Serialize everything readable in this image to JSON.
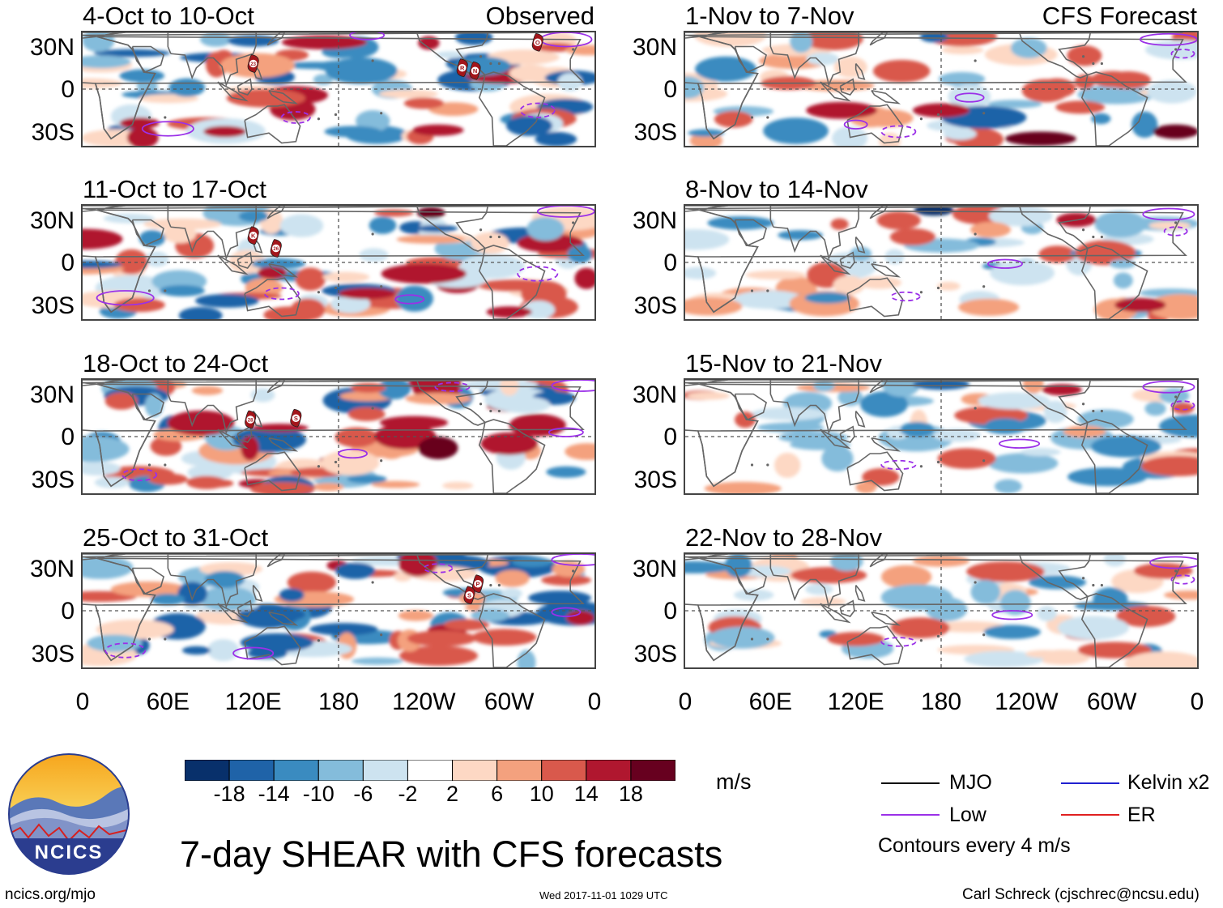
{
  "chart_data": {
    "type": "heatmap",
    "title": "7-day SHEAR with CFS forecasts",
    "unit": "m/s",
    "observed_label": "Observed",
    "forecast_label": "CFS Forecast",
    "x_tick_labels": [
      "0",
      "60E",
      "120E",
      "180",
      "120W",
      "60W",
      "0"
    ],
    "y_tick_labels": [
      "30N",
      "0",
      "30S"
    ],
    "xlim_deg_east": [
      0,
      360
    ],
    "ylim_deg_lat": [
      -40,
      40
    ],
    "colorbar": {
      "ticks": [
        "-18",
        "-14",
        "-10",
        "-6",
        "-2",
        "2",
        "6",
        "10",
        "14",
        "18"
      ],
      "colors": [
        "#08306b",
        "#1f63a8",
        "#3a8bc0",
        "#84bcdb",
        "#cde3f0",
        "#ffffff",
        "#fdd8c4",
        "#f4a17e",
        "#d9594c",
        "#b0172f",
        "#67001f"
      ]
    },
    "panels": [
      {
        "title": "4-Oct to 10-Oct",
        "column": "observed",
        "storms": [
          {
            "label": "23",
            "lon": 120,
            "lat": 18
          },
          {
            "label": "R",
            "lon": 267,
            "lat": 15
          },
          {
            "label": "N",
            "lon": 276,
            "lat": 13
          },
          {
            "label": "O",
            "lon": 320,
            "lat": 33
          }
        ]
      },
      {
        "title": "11-Oct to 17-Oct",
        "column": "observed",
        "storms": [
          {
            "label": "K",
            "lon": 120,
            "lat": 19
          },
          {
            "label": "26",
            "lon": 136,
            "lat": 10
          }
        ]
      },
      {
        "title": "18-Oct to 24-Oct",
        "column": "observed",
        "storms": [
          {
            "label": "28",
            "lon": 118,
            "lat": 12
          },
          {
            "label": "S",
            "lon": 150,
            "lat": 13
          }
        ]
      },
      {
        "title": "25-Oct to 31-Oct",
        "column": "observed",
        "storms": [
          {
            "label": "P",
            "lon": 278,
            "lat": 19
          },
          {
            "label": "S",
            "lon": 272,
            "lat": 11
          }
        ]
      },
      {
        "title": "1-Nov to 7-Nov",
        "column": "forecast",
        "storms": []
      },
      {
        "title": "8-Nov to 14-Nov",
        "column": "forecast",
        "storms": []
      },
      {
        "title": "15-Nov to 21-Nov",
        "column": "forecast",
        "storms": []
      },
      {
        "title": "22-Nov to 28-Nov",
        "column": "forecast",
        "storms": []
      }
    ],
    "legend": [
      {
        "label": "MJO",
        "color": "#000000"
      },
      {
        "label": "Kelvin x2",
        "color": "#2020d0"
      },
      {
        "label": "Low",
        "color": "#9b30e8"
      },
      {
        "label": "ER",
        "color": "#e02020"
      }
    ],
    "contour_note": "Contours every 4 m/s"
  },
  "footer": {
    "logo_text": "NCICS",
    "url": "ncics.org/mjo",
    "timestamp": "Wed 2017-11-01 1029 UTC",
    "author": "Carl Schreck (cjschrec@ncsu.edu)"
  }
}
